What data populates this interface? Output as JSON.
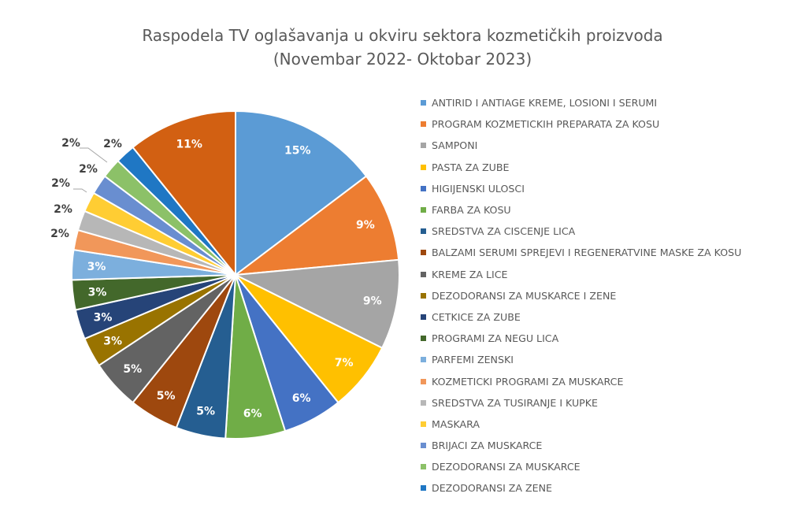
{
  "chart_data": {
    "type": "pie",
    "title": "Raspodela TV oglašavanja u okviru sektora kozmetičkih proizvoda",
    "subtitle": "(Novembar 2022- Oktobar 2023)",
    "legend_position": "right",
    "categories": [
      "ANTIRID I ANTIAGE KREME, LOSIONI I SERUMI",
      "PROGRAM KOZMETICKIH PREPARATA ZA KOSU",
      "SAMPONI",
      "PASTA ZA ZUBE",
      "HIGIJENSKI ULOSCI",
      "FARBA ZA KOSU",
      "SREDSTVA ZA CISCENJE LICA",
      "BALZAMI SERUMI SPREJEVI I REGENERATVINE MASKE ZA KOSU",
      "KREME ZA LICE",
      "DEZODORANSI ZA MUSKARCE I ZENE",
      "CETKICE ZA ZUBE",
      "PROGRAMI ZA NEGU LICA",
      "PARFEMI ZENSKI",
      "KOZMETICKI PROGRAMI ZA MUSKARCE",
      "SREDSTVA ZA TUSIRANJE I KUPKE",
      "MASKARA",
      "BRIJACI ZA MUSKARCE",
      "DEZODORANSI ZA MUSKARCE",
      "DEZODORANSI ZA ZENE",
      ""
    ],
    "values": [
      15,
      9,
      9,
      7,
      6,
      6,
      5,
      5,
      5,
      3,
      3,
      3,
      3,
      2,
      2,
      2,
      2,
      2,
      2,
      11
    ],
    "labels": [
      "15%",
      "9%",
      "9%",
      "7%",
      "6%",
      "6%",
      "5%",
      "5%",
      "5%",
      "3%",
      "3%",
      "3%",
      "3%",
      "2%",
      "2%",
      "2%",
      "2%",
      "2%",
      "2%",
      "11%"
    ],
    "colors": [
      "#5b9bd5",
      "#ed7d31",
      "#a5a5a5",
      "#ffc000",
      "#4472c4",
      "#70ad47",
      "#255e91",
      "#9e480e",
      "#636363",
      "#997300",
      "#264478",
      "#43682b",
      "#7cafdd",
      "#f1975a",
      "#b7b7b7",
      "#ffcd33",
      "#698ed0",
      "#8cc168",
      "#1f77c4",
      "#d26012"
    ]
  }
}
